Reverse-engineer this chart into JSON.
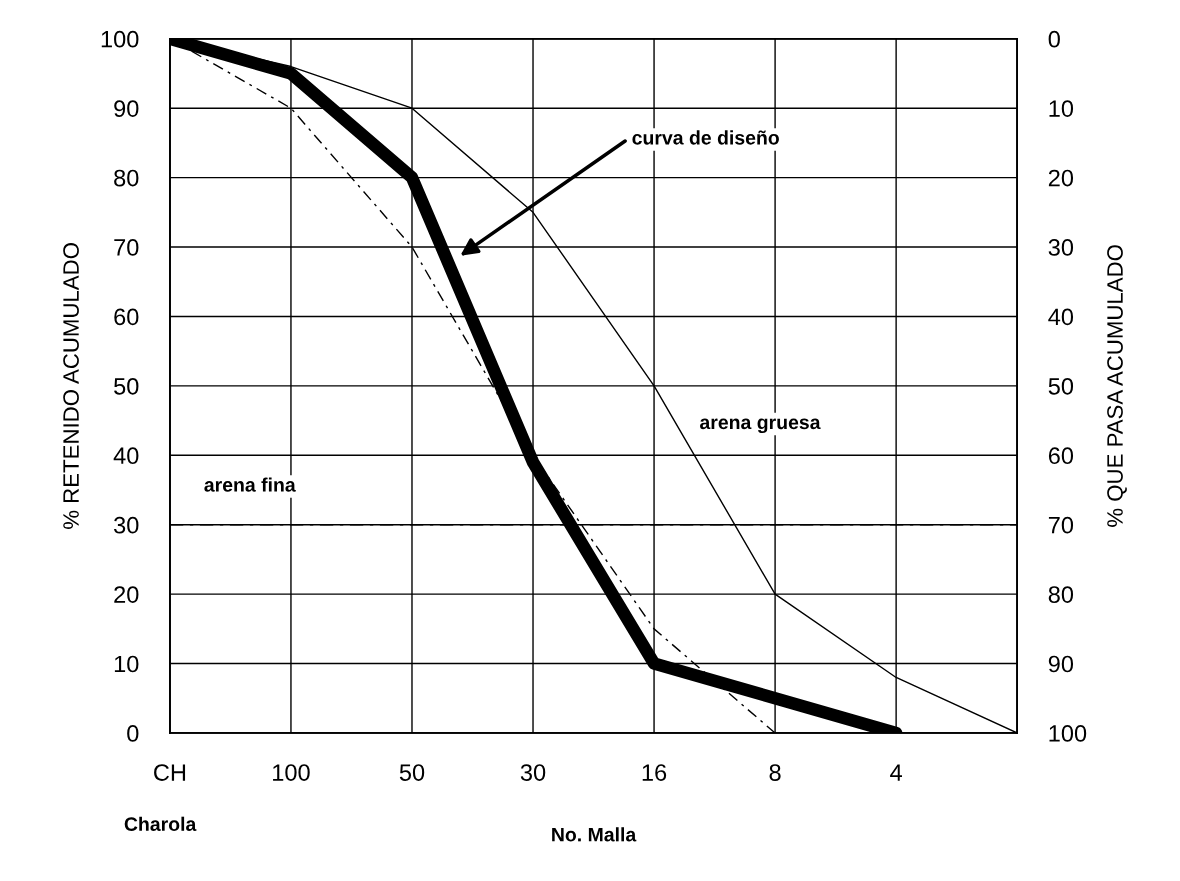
{
  "chart_data": {
    "type": "line",
    "xlabel": "No. Malla",
    "ylabel": "% RETENIDO ACUMULADO",
    "y2label": "% QUE PASA ACUMULADO",
    "categories": [
      "CH",
      "100",
      "50",
      "30",
      "16",
      "8",
      "4",
      null
    ],
    "series": [
      {
        "color": "#000000",
        "line_style": "solid",
        "values": [
          100,
          95,
          80,
          39,
          10,
          5,
          0,
          null
        ]
      },
      {
        "color": "#000000",
        "line_style": "solid",
        "values": [
          100,
          96,
          90,
          75,
          50,
          20,
          8,
          0
        ]
      },
      {
        "color": "#000000",
        "line_style": "dashed",
        "values": [
          100,
          90,
          70,
          40,
          15,
          0,
          null,
          null
        ]
      }
    ],
    "ylim": [
      0,
      100
    ],
    "yticks": [
      0,
      10,
      20,
      30,
      40,
      50,
      60,
      70,
      80,
      90,
      100
    ],
    "y2lim": [
      100,
      0
    ],
    "y2ticks": [
      0,
      10,
      20,
      30,
      40,
      50,
      60,
      70,
      80,
      90,
      100
    ],
    "ref_lines": [
      {
        "axis": "y",
        "value": 30,
        "line_style": "dashed",
        "color": "#000000"
      }
    ],
    "annotations": [
      "curva de diseño",
      "arena fina",
      "arena gruesa",
      "Charola"
    ],
    "grid": true,
    "marker": "none"
  }
}
